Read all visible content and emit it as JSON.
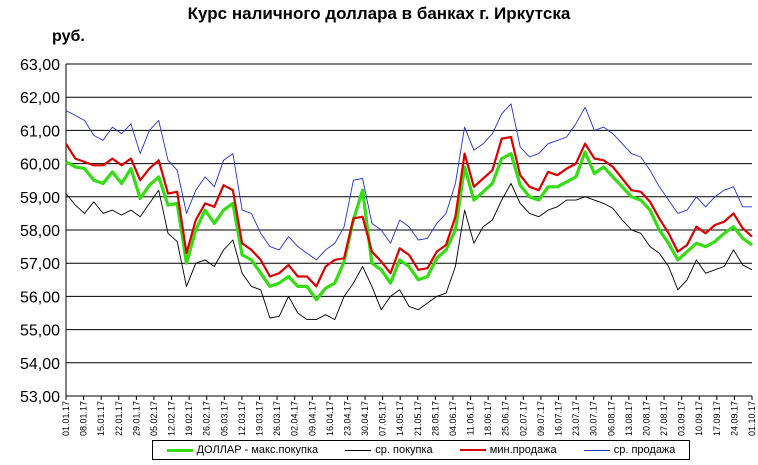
{
  "title": "Курс наличного доллара  в банках г. Иркутска",
  "unit": "руб.",
  "chart_data": {
    "type": "line",
    "ylim": [
      53,
      63
    ],
    "y_ticks": [
      "53,00",
      "54,00",
      "55,00",
      "56,00",
      "57,00",
      "58,00",
      "59,00",
      "60,00",
      "61,00",
      "62,00",
      "63,00"
    ],
    "x_tick_labels": [
      "01.01.17",
      "08.01.17",
      "15.01.17",
      "22.01.17",
      "29.01.17",
      "05.02.17",
      "12.02.17",
      "19.02.17",
      "26.02.17",
      "05.03.17",
      "12.03.17",
      "19.03.17",
      "26.03.17",
      "02.04.17",
      "09.04.17",
      "16.04.17",
      "23.04.17",
      "30.04.17",
      "07.05.17",
      "14.05.17",
      "21.05.17",
      "28.05.17",
      "04.06.17",
      "11.06.17",
      "18.06.17",
      "25.06.17",
      "02.07.17",
      "09.07.17",
      "16.07.17",
      "23.07.17",
      "30.07.17",
      "06.08.17",
      "13.08.17",
      "20.08.17",
      "27.08.17",
      "03.09.17",
      "10.09.17",
      "17.09.17",
      "24.09.17",
      "01.10.17"
    ],
    "grid": "horizontal",
    "legend_position": "bottom",
    "series": [
      {
        "name": "ДОЛЛАР - макс.покупка",
        "color": "#33dd11",
        "width": 3.2,
        "values": [
          60.05,
          59.9,
          59.85,
          59.5,
          59.4,
          59.75,
          59.4,
          59.85,
          58.95,
          59.35,
          59.6,
          58.75,
          58.8,
          57.0,
          58.0,
          58.6,
          58.2,
          58.6,
          58.8,
          57.25,
          57.1,
          56.7,
          56.3,
          56.4,
          56.6,
          56.3,
          56.3,
          55.9,
          56.25,
          56.4,
          57.05,
          58.3,
          59.2,
          57.0,
          56.8,
          56.4,
          57.1,
          56.9,
          56.5,
          56.6,
          57.15,
          57.4,
          58.0,
          59.9,
          58.9,
          59.15,
          59.4,
          60.15,
          60.3,
          59.35,
          59.0,
          58.9,
          59.3,
          59.3,
          59.45,
          59.6,
          60.35,
          59.7,
          59.9,
          59.6,
          59.3,
          59.0,
          58.9,
          58.6,
          58.0,
          57.6,
          57.1,
          57.35,
          57.6,
          57.5,
          57.65,
          57.9,
          58.1,
          57.75,
          57.55
        ]
      },
      {
        "name": "ср. покупка",
        "color": "#000000",
        "width": 0.9,
        "values": [
          59.1,
          58.75,
          58.5,
          58.85,
          58.5,
          58.6,
          58.45,
          58.6,
          58.4,
          58.8,
          59.2,
          57.9,
          57.65,
          56.3,
          57.0,
          57.1,
          56.9,
          57.4,
          57.7,
          56.7,
          56.3,
          56.2,
          55.35,
          55.4,
          56.0,
          55.5,
          55.3,
          55.3,
          55.45,
          55.3,
          56.0,
          56.4,
          56.9,
          56.3,
          55.6,
          56.0,
          56.2,
          55.7,
          55.6,
          55.8,
          56.0,
          56.1,
          56.9,
          58.6,
          57.6,
          58.1,
          58.3,
          58.9,
          59.4,
          58.8,
          58.5,
          58.4,
          58.6,
          58.7,
          58.9,
          58.9,
          59.0,
          58.9,
          58.8,
          58.65,
          58.3,
          58.0,
          57.9,
          57.5,
          57.3,
          56.9,
          56.2,
          56.5,
          57.1,
          56.7,
          56.8,
          56.9,
          57.4,
          56.95,
          56.8
        ]
      },
      {
        "name": "мин.продажа",
        "color": "#dd0000",
        "width": 2.2,
        "values": [
          60.6,
          60.15,
          60.05,
          59.95,
          59.95,
          60.15,
          59.95,
          60.15,
          59.5,
          59.85,
          60.1,
          59.1,
          59.15,
          57.3,
          58.3,
          58.8,
          58.7,
          59.35,
          59.2,
          57.6,
          57.4,
          57.1,
          56.6,
          56.7,
          56.95,
          56.6,
          56.6,
          56.3,
          56.9,
          57.1,
          57.15,
          58.35,
          58.4,
          57.35,
          57.05,
          56.7,
          57.45,
          57.25,
          56.8,
          56.85,
          57.35,
          57.55,
          58.4,
          60.3,
          59.3,
          59.55,
          59.8,
          60.75,
          60.8,
          59.65,
          59.3,
          59.2,
          59.75,
          59.65,
          59.85,
          60.0,
          60.6,
          60.15,
          60.1,
          59.9,
          59.55,
          59.2,
          59.15,
          58.85,
          58.35,
          57.9,
          57.35,
          57.55,
          58.1,
          57.9,
          58.15,
          58.25,
          58.5,
          58.05,
          57.8
        ]
      },
      {
        "name": "ср. продажа",
        "color": "#2233cc",
        "width": 0.9,
        "values": [
          61.6,
          61.45,
          61.3,
          60.85,
          60.7,
          61.1,
          60.9,
          61.2,
          60.3,
          61.0,
          61.3,
          60.1,
          59.8,
          58.5,
          59.2,
          59.6,
          59.3,
          60.1,
          60.3,
          58.6,
          58.5,
          57.9,
          57.5,
          57.4,
          57.8,
          57.5,
          57.3,
          57.1,
          57.4,
          57.6,
          58.1,
          59.5,
          59.55,
          58.2,
          58.0,
          57.6,
          58.3,
          58.1,
          57.7,
          57.75,
          58.2,
          58.5,
          59.4,
          61.1,
          60.4,
          60.6,
          60.9,
          61.5,
          61.8,
          60.5,
          60.2,
          60.3,
          60.6,
          60.7,
          60.8,
          61.2,
          61.7,
          61.0,
          61.1,
          60.9,
          60.6,
          60.3,
          60.2,
          59.8,
          59.3,
          58.9,
          58.5,
          58.6,
          59.0,
          58.7,
          59.0,
          59.2,
          59.3,
          58.7,
          58.7
        ]
      }
    ]
  }
}
